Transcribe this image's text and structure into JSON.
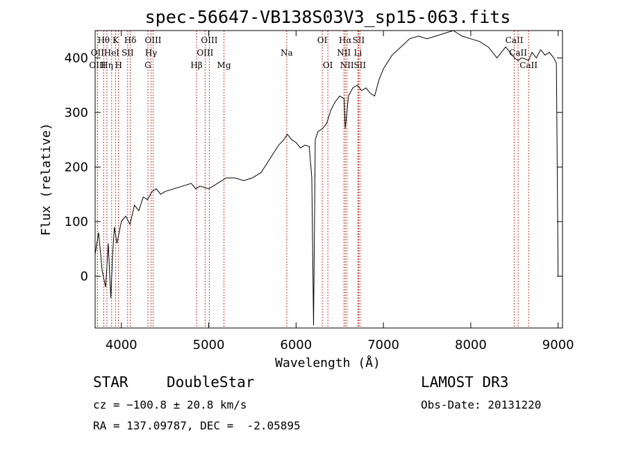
{
  "chart_data": {
    "type": "line",
    "title": "spec-56647-VB138S03V3_sp15-063.fits",
    "xlabel": "Wavelength (Å)",
    "ylabel": "Flux (relative)",
    "xlim": [
      3700,
      9050
    ],
    "ylim": [
      -95,
      450
    ],
    "xticks": [
      4000,
      5000,
      6000,
      7000,
      8000,
      9000
    ],
    "yticks": [
      0,
      100,
      200,
      300,
      400
    ],
    "series": [
      {
        "name": "flux",
        "x": [
          3700,
          3740,
          3780,
          3820,
          3850,
          3880,
          3900,
          3920,
          3950,
          4000,
          4050,
          4100,
          4150,
          4200,
          4250,
          4300,
          4350,
          4400,
          4450,
          4500,
          4600,
          4700,
          4800,
          4850,
          4900,
          5000,
          5100,
          5200,
          5300,
          5400,
          5500,
          5600,
          5700,
          5800,
          5860,
          5900,
          5950,
          6000,
          6050,
          6100,
          6150,
          6180,
          6200,
          6220,
          6250,
          6300,
          6350,
          6400,
          6450,
          6500,
          6550,
          6563,
          6600,
          6650,
          6700,
          6750,
          6800,
          6850,
          6900,
          6950,
          7000,
          7100,
          7200,
          7300,
          7400,
          7500,
          7600,
          7700,
          7800,
          7900,
          8000,
          8100,
          8200,
          8300,
          8400,
          8450,
          8500,
          8542,
          8580,
          8620,
          8662,
          8700,
          8750,
          8800,
          8850,
          8900,
          8950,
          8980,
          9000
        ],
        "y": [
          40,
          80,
          10,
          -20,
          60,
          -40,
          40,
          90,
          60,
          100,
          110,
          95,
          130,
          120,
          145,
          140,
          155,
          160,
          150,
          155,
          160,
          165,
          170,
          160,
          165,
          160,
          170,
          180,
          180,
          175,
          180,
          190,
          215,
          240,
          250,
          260,
          250,
          245,
          235,
          240,
          238,
          180,
          -90,
          250,
          265,
          270,
          280,
          305,
          320,
          330,
          325,
          270,
          330,
          345,
          350,
          340,
          345,
          335,
          330,
          360,
          380,
          405,
          420,
          435,
          440,
          435,
          440,
          445,
          450,
          440,
          435,
          430,
          420,
          400,
          420,
          410,
          400,
          395,
          400,
          398,
          395,
          410,
          400,
          415,
          405,
          410,
          400,
          390,
          0
        ]
      }
    ],
    "spectral_lines": [
      {
        "name": "Hθ",
        "wavelength": 3798,
        "row": 1
      },
      {
        "name": "K",
        "wavelength": 3934,
        "row": 1
      },
      {
        "name": "Hδ",
        "wavelength": 4102,
        "row": 1
      },
      {
        "name": "OIII",
        "wavelength": 4363,
        "row": 1
      },
      {
        "name": "OIII",
        "wavelength": 5007,
        "row": 1
      },
      {
        "name": "OI",
        "wavelength": 6300,
        "row": 1
      },
      {
        "name": "Hα",
        "wavelength": 6563,
        "row": 1
      },
      {
        "name": "SII",
        "wavelength": 6716,
        "row": 1
      },
      {
        "name": "CaII",
        "wavelength": 8498,
        "row": 1
      },
      {
        "name": "OII",
        "wavelength": 3727,
        "row": 2
      },
      {
        "name": "HeI",
        "wavelength": 3889,
        "row": 2
      },
      {
        "name": "SII",
        "wavelength": 4072,
        "row": 2
      },
      {
        "name": "Hγ",
        "wavelength": 4340,
        "row": 2
      },
      {
        "name": "OIII",
        "wavelength": 4959,
        "row": 2
      },
      {
        "name": "Na",
        "wavelength": 5893,
        "row": 2
      },
      {
        "name": "NII",
        "wavelength": 6548,
        "row": 2
      },
      {
        "name": "Li",
        "wavelength": 6708,
        "row": 2
      },
      {
        "name": "CaII",
        "wavelength": 8542,
        "row": 2
      },
      {
        "name": "OIII",
        "wavelength": 3727,
        "row": 3
      },
      {
        "name": "Hη",
        "wavelength": 3835,
        "row": 3
      },
      {
        "name": "H",
        "wavelength": 3968,
        "row": 3
      },
      {
        "name": "G",
        "wavelength": 4304,
        "row": 3
      },
      {
        "name": "Hβ",
        "wavelength": 4861,
        "row": 3
      },
      {
        "name": "Mg",
        "wavelength": 5175,
        "row": 3
      },
      {
        "name": "OI",
        "wavelength": 6364,
        "row": 3
      },
      {
        "name": "NII",
        "wavelength": 6583,
        "row": 3
      },
      {
        "name": "SII",
        "wavelength": 6731,
        "row": 3
      },
      {
        "name": "CaII",
        "wavelength": 8662,
        "row": 3
      }
    ]
  },
  "info": {
    "object_class": "STAR",
    "object_subclass": "DoubleStar",
    "survey": "LAMOST DR3",
    "velocity": "cz = −100.8 ± 20.8 km/s",
    "obs_date": "Obs-Date: 20131220",
    "coords": "RA = 137.09787, DEC =  -2.05895"
  }
}
